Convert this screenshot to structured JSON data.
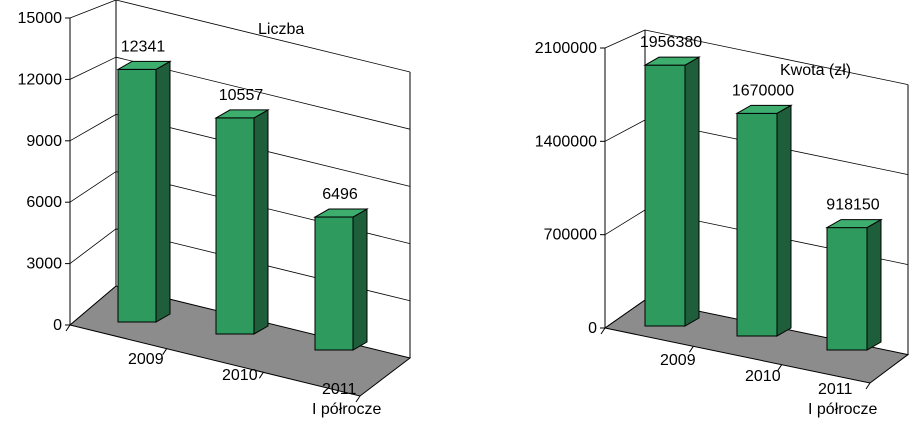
{
  "chart_data": [
    {
      "type": "bar",
      "title": "Liczba",
      "categories": [
        "2009",
        "2010",
        "2011|I półrocze"
      ],
      "values": [
        12341,
        10557,
        6496
      ],
      "data_labels": [
        "12341",
        "10557",
        "6496"
      ],
      "ylim": [
        0,
        15000
      ],
      "yticks": [
        "0",
        "3000",
        "6000",
        "9000",
        "12000",
        "15000"
      ],
      "grid": true,
      "three_d": true
    },
    {
      "type": "bar",
      "title": "Kwota (zł)",
      "categories": [
        "2009",
        "2010",
        "2011|I półrocze"
      ],
      "values": [
        1956380,
        1670000,
        918150
      ],
      "data_labels": [
        "1956380",
        "1670000",
        "918150"
      ],
      "ylim": [
        0,
        2100000
      ],
      "yticks": [
        "0",
        "700000",
        "1400000",
        "2100000"
      ],
      "grid": true,
      "three_d": true
    }
  ],
  "colors": {
    "bar_front": "#2e9a5e",
    "bar_side": "#1f5e3a",
    "bar_top": "#3dae6e",
    "floor": "#8c8c8c",
    "grid": "#000000"
  }
}
